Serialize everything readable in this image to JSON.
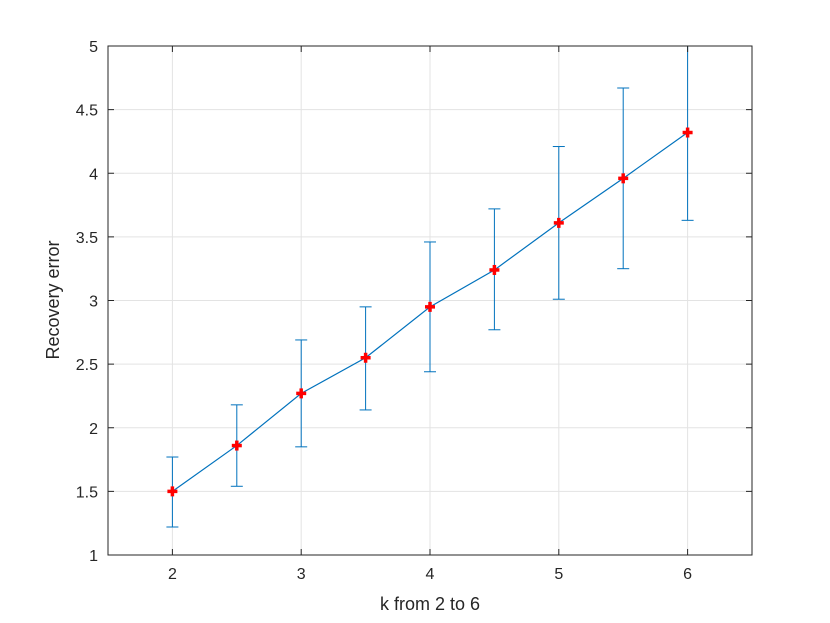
{
  "chart_data": {
    "type": "line",
    "title": "",
    "xlabel": "k from 2 to 6",
    "ylabel": "Recovery error",
    "xlim": [
      1.5,
      6.5
    ],
    "ylim": [
      1,
      5
    ],
    "x_ticks": [
      2,
      3,
      4,
      5,
      6
    ],
    "y_ticks": [
      1,
      1.5,
      2,
      2.5,
      3,
      3.5,
      4,
      4.5,
      5
    ],
    "y_tick_labels": [
      "1",
      "1.5",
      "2",
      "2.5",
      "3",
      "3.5",
      "4",
      "4.5",
      "5"
    ],
    "grid": true,
    "legend": "none",
    "series": [
      {
        "x": [
          2,
          2.5,
          3,
          3.5,
          4,
          4.5,
          5,
          5.5,
          6
        ],
        "y": [
          1.5,
          1.86,
          2.27,
          2.55,
          2.95,
          3.24,
          3.61,
          3.96,
          4.32
        ],
        "error_lower": [
          1.22,
          1.54,
          1.85,
          2.14,
          2.44,
          2.77,
          3.01,
          3.25,
          3.63
        ],
        "error_upper": [
          1.77,
          2.18,
          2.69,
          2.95,
          3.46,
          3.72,
          4.21,
          4.67,
          5.0
        ],
        "line_color": "#0072BD",
        "marker": "plus",
        "marker_color": "#FF0000"
      }
    ]
  }
}
